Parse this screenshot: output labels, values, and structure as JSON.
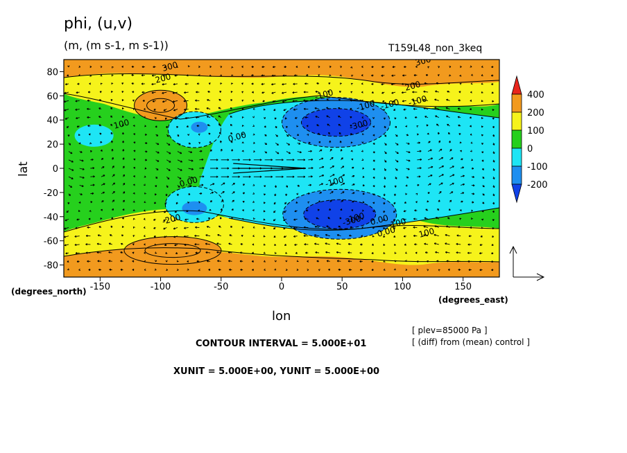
{
  "chart_data": {
    "type": "contour",
    "title": "phi, (u,v)",
    "subtitle": "(m, (m s-1, m s-1))",
    "experiment": "T159L48_non_3keq",
    "xlabel": "lon",
    "ylabel": "lat",
    "x_units": "(degrees_east)",
    "y_units": "(degrees_north)",
    "xlim": [
      -180,
      180
    ],
    "ylim": [
      -90,
      90
    ],
    "xticks": [
      "-150",
      "-100",
      "-50",
      "0",
      "50",
      "100",
      "150"
    ],
    "yticks": [
      "80",
      "60",
      "40",
      "20",
      "0",
      "-20",
      "-40",
      "-60",
      "-80"
    ],
    "colorbar": {
      "labels": [
        "400",
        "200",
        "100",
        "0",
        "-100",
        "-200"
      ],
      "colors": [
        "#e8261c",
        "#f29a1e",
        "#f6f31b",
        "#26d01d",
        "#1ee5f5",
        "#1e8ff0",
        "#1042e8"
      ]
    },
    "contour_labels": [
      "300",
      "300",
      "200",
      "200",
      "100",
      "-100",
      "-100",
      "-300",
      "-100",
      "0.00",
      "0.00",
      "-100",
      "0.00",
      "-200",
      "-100",
      "-300",
      "0.00",
      "-100",
      "-100",
      "100"
    ],
    "level_note": "[ plev=85000 Pa ]",
    "diff_note": "[ (diff) from (mean) control ]",
    "contour_interval": "CONTOUR INTERVAL = 5.000E+01",
    "vector_units": "XUNIT = 5.000E+00, YUNIT = 5.000E+00",
    "features": [
      {
        "kind": "high",
        "lon": -100,
        "lat": 52,
        "value": 200
      },
      {
        "kind": "high",
        "lon": -100,
        "lat": -72,
        "value": 200
      },
      {
        "kind": "high",
        "lon": 130,
        "lat": 77,
        "value": 200
      },
      {
        "kind": "low",
        "lon": 45,
        "lat": 38,
        "value": -300
      },
      {
        "kind": "low",
        "lon": 48,
        "lat": -38,
        "value": -300
      },
      {
        "kind": "low",
        "lon": -75,
        "lat": -32,
        "value": -100
      },
      {
        "kind": "low",
        "lon": -70,
        "lat": 35,
        "value": -100
      }
    ]
  }
}
